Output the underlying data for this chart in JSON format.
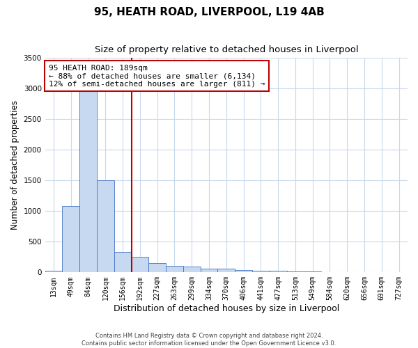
{
  "title": "95, HEATH ROAD, LIVERPOOL, L19 4AB",
  "subtitle": "Size of property relative to detached houses in Liverpool",
  "xlabel": "Distribution of detached houses by size in Liverpool",
  "ylabel": "Number of detached properties",
  "categories": [
    "13sqm",
    "49sqm",
    "84sqm",
    "120sqm",
    "156sqm",
    "192sqm",
    "227sqm",
    "263sqm",
    "299sqm",
    "334sqm",
    "370sqm",
    "406sqm",
    "441sqm",
    "477sqm",
    "513sqm",
    "549sqm",
    "584sqm",
    "620sqm",
    "656sqm",
    "691sqm",
    "727sqm"
  ],
  "values": [
    30,
    1080,
    3050,
    1500,
    330,
    250,
    155,
    110,
    90,
    65,
    60,
    40,
    30,
    25,
    15,
    10,
    5,
    3,
    2,
    1,
    0
  ],
  "bar_color": "#c6d9f0",
  "bar_edge_color": "#4472c4",
  "vline_color": "#c00000",
  "vline_index": 4.5,
  "annotation_text": "95 HEATH ROAD: 189sqm\n← 88% of detached houses are smaller (6,134)\n12% of semi-detached houses are larger (811) →",
  "annotation_box_edgecolor": "#c00000",
  "ylim": [
    0,
    3500
  ],
  "yticks": [
    0,
    500,
    1000,
    1500,
    2000,
    2500,
    3000,
    3500
  ],
  "background_color": "#ffffff",
  "grid_color": "#c8d8ec",
  "footer_line1": "Contains HM Land Registry data © Crown copyright and database right 2024.",
  "footer_line2": "Contains public sector information licensed under the Open Government Licence v3.0.",
  "title_fontsize": 11,
  "subtitle_fontsize": 9.5,
  "xlabel_fontsize": 9,
  "ylabel_fontsize": 8.5,
  "annot_fontsize": 8,
  "tick_fontsize": 7
}
